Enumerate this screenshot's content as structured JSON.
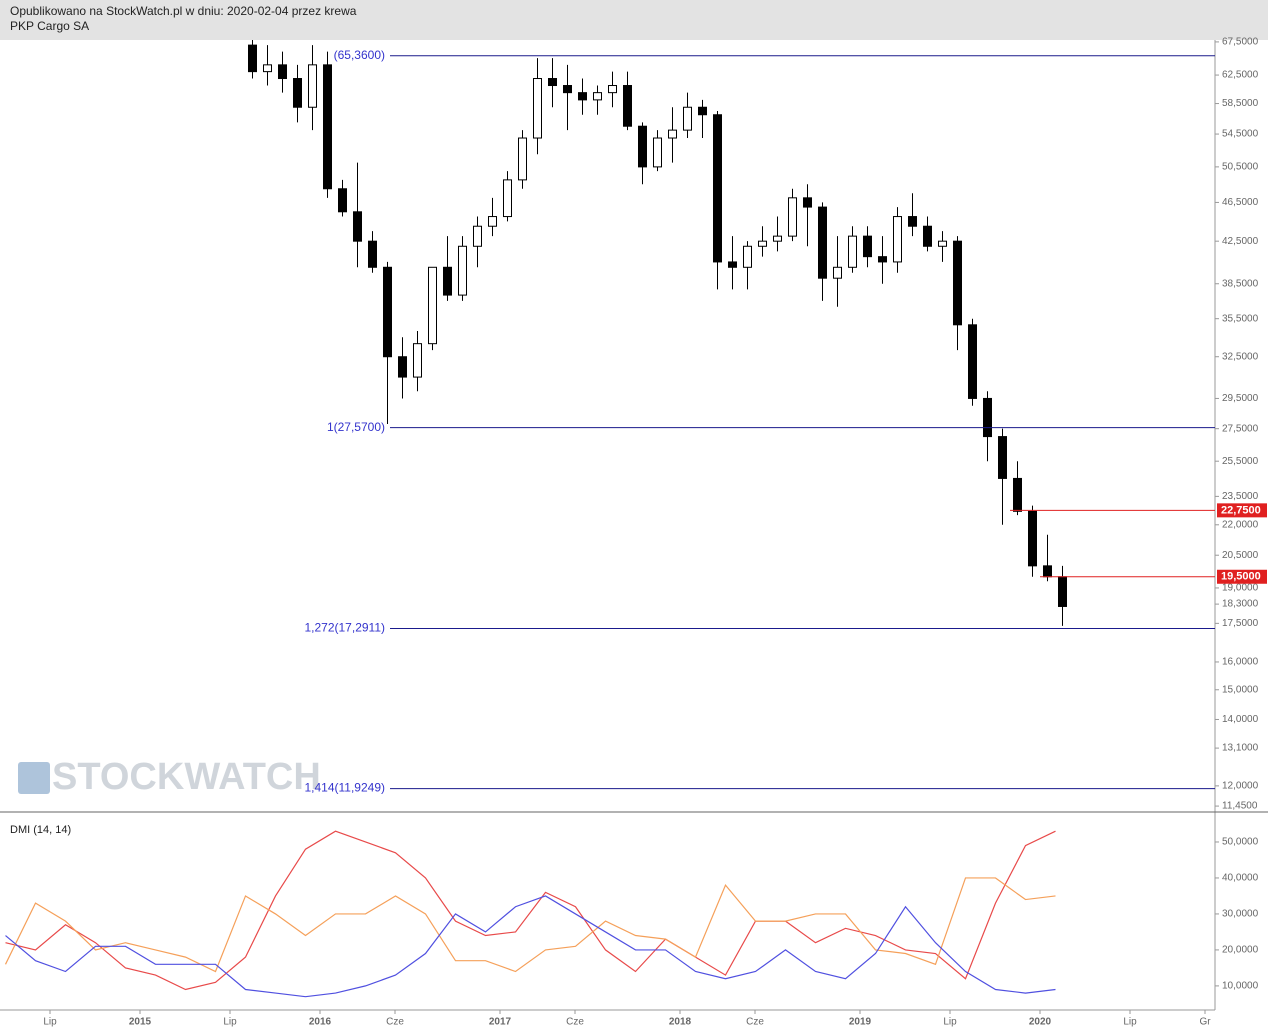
{
  "header": {
    "line1": "Opublikowano na StockWatch.pl w dniu: 2020-02-04 przez krewa",
    "line2": "PKP Cargo SA"
  },
  "watermark": "STOCKWATCH",
  "chart_data": [
    {
      "type": "candlestick",
      "log_scale": true,
      "xlim": [
        "2014-04",
        "2020-12"
      ],
      "ylim": [
        11.32,
        67.8
      ],
      "x": [
        "2015-08",
        "2015-09",
        "2015-10",
        "2015-11",
        "2015-12",
        "2016-01",
        "2016-02",
        "2016-03",
        "2016-04",
        "2016-05",
        "2016-06",
        "2016-07",
        "2016-08",
        "2016-09",
        "2016-10",
        "2016-11",
        "2016-12",
        "2017-01",
        "2017-02",
        "2017-03",
        "2017-04",
        "2017-05",
        "2017-06",
        "2017-07",
        "2017-08",
        "2017-09",
        "2017-10",
        "2017-11",
        "2017-12",
        "2018-01",
        "2018-02",
        "2018-03",
        "2018-04",
        "2018-05",
        "2018-06",
        "2018-07",
        "2018-08",
        "2018-09",
        "2018-10",
        "2018-11",
        "2018-12",
        "2019-01",
        "2019-02",
        "2019-03",
        "2019-04",
        "2019-05",
        "2019-06",
        "2019-07",
        "2019-08",
        "2019-09",
        "2019-10",
        "2019-11",
        "2019-12",
        "2020-01",
        "2020-02"
      ],
      "open": [
        67,
        63,
        64,
        62,
        58,
        64,
        48,
        45.5,
        42.5,
        40,
        32.5,
        31,
        33.5,
        40,
        37.5,
        42,
        44,
        45,
        49,
        54,
        62,
        61,
        60,
        59,
        60,
        61,
        55.5,
        50.5,
        54,
        55,
        58,
        57,
        40.5,
        40,
        42,
        42.5,
        43,
        47,
        46,
        39,
        40,
        43,
        41,
        40.5,
        45,
        44,
        42,
        42.5,
        35,
        29.5,
        27,
        24.5,
        22.7,
        20,
        19.5
      ],
      "high": [
        67.8,
        67,
        66,
        64,
        67,
        66,
        49,
        51,
        43.5,
        40.5,
        34,
        34.5,
        40,
        43,
        43,
        45,
        47,
        50,
        55,
        65,
        65,
        64,
        62,
        61,
        63,
        63,
        56,
        55,
        58,
        60,
        59,
        57.5,
        43,
        42.5,
        44,
        45,
        48,
        48.5,
        46.5,
        43,
        44,
        44,
        43,
        46,
        47.5,
        45,
        43.5,
        43,
        35.5,
        30,
        27.5,
        25.5,
        23,
        21.5,
        20
      ],
      "low": [
        62,
        61,
        60,
        56,
        55,
        47,
        45,
        40,
        39.5,
        27.8,
        29.5,
        30,
        33,
        37,
        37,
        40,
        43,
        44.5,
        48,
        52,
        58,
        55,
        57,
        57,
        58,
        55,
        48.5,
        50,
        51,
        54,
        54,
        38,
        38,
        38,
        41,
        41.5,
        42.5,
        42,
        37,
        36.5,
        39.5,
        40,
        38.5,
        39.5,
        43,
        41.5,
        40.5,
        33,
        29,
        25.5,
        22,
        22.5,
        19.5,
        19.3,
        17.4
      ],
      "close": [
        63,
        64,
        62,
        58,
        64,
        48,
        45.5,
        42.5,
        40,
        32.5,
        31,
        33.5,
        40,
        37.5,
        42,
        44,
        45,
        49,
        54,
        62,
        61,
        60,
        59,
        60,
        61,
        55.5,
        50.5,
        54,
        55,
        58,
        57,
        40.5,
        40,
        42,
        42.5,
        43,
        47,
        46,
        39,
        40,
        43,
        41,
        40.5,
        45,
        44,
        42,
        42.5,
        35,
        29.5,
        27,
        24.5,
        22.7,
        20,
        19.5,
        18.2
      ],
      "yticks": [
        {
          "value": 67.5,
          "label": "67,5000"
        },
        {
          "value": 62.5,
          "label": "62,5000"
        },
        {
          "value": 58.5,
          "label": "58,5000"
        },
        {
          "value": 54.5,
          "label": "54,5000"
        },
        {
          "value": 50.5,
          "label": "50,5000"
        },
        {
          "value": 46.5,
          "label": "46,5000"
        },
        {
          "value": 42.5,
          "label": "42,5000"
        },
        {
          "value": 38.5,
          "label": "38,5000"
        },
        {
          "value": 35.5,
          "label": "35,5000"
        },
        {
          "value": 32.5,
          "label": "32,5000"
        },
        {
          "value": 29.5,
          "label": "29,5000"
        },
        {
          "value": 27.5,
          "label": "27,5000"
        },
        {
          "value": 25.5,
          "label": "25,5000"
        },
        {
          "value": 23.5,
          "label": "23,5000"
        },
        {
          "value": 22,
          "label": "22,0000"
        },
        {
          "value": 20.5,
          "label": "20,5000"
        },
        {
          "value": 19,
          "label": "19,0000"
        },
        {
          "value": 18.3,
          "label": "18,3000"
        },
        {
          "value": 17.5,
          "label": "17,5000"
        },
        {
          "value": 16,
          "label": "16,0000"
        },
        {
          "value": 15,
          "label": "15,0000"
        },
        {
          "value": 14,
          "label": "14,0000"
        },
        {
          "value": 13.1,
          "label": "13,1000"
        },
        {
          "value": 12,
          "label": "12,0000"
        },
        {
          "value": 11.45,
          "label": "11,4500"
        }
      ],
      "fib_levels": [
        {
          "value": 65.36,
          "label": "(65,3600)"
        },
        {
          "value": 27.57,
          "label": "1(27,5700)"
        },
        {
          "value": 17.2911,
          "label": "1,272(17,2911)"
        },
        {
          "value": 11.9249,
          "label": "1,414(11,9249)"
        }
      ],
      "fib_color": "#1a1a8c",
      "price_lines": [
        {
          "value": 22.75,
          "label": "22,7500",
          "from": "2019-11"
        },
        {
          "value": 19.5,
          "label": "19,5000",
          "from": "2020-01"
        }
      ],
      "price_line_color": "#e02020"
    },
    {
      "type": "line",
      "title": "DMI (14, 14)",
      "xlim": [
        "2014-04",
        "2020-12"
      ],
      "ylim": [
        3.3,
        57.5
      ],
      "x": [
        "2014-04",
        "2014-06",
        "2014-08",
        "2014-10",
        "2014-12",
        "2015-02",
        "2015-04",
        "2015-06",
        "2015-08",
        "2015-10",
        "2015-12",
        "2016-02",
        "2016-04",
        "2016-06",
        "2016-08",
        "2016-10",
        "2016-12",
        "2017-02",
        "2017-04",
        "2017-06",
        "2017-08",
        "2017-10",
        "2017-12",
        "2018-02",
        "2018-04",
        "2018-06",
        "2018-08",
        "2018-10",
        "2018-12",
        "2019-02",
        "2019-04",
        "2019-06",
        "2019-08",
        "2019-10",
        "2019-12",
        "2020-02"
      ],
      "series": [
        {
          "color": "#e84a4a",
          "values": [
            22,
            20,
            27,
            22,
            15,
            13,
            9,
            11,
            18,
            35,
            48,
            53,
            50,
            47,
            40,
            28,
            24,
            25,
            36,
            32,
            20,
            14,
            23,
            18,
            13,
            28,
            28,
            22,
            26,
            24,
            20,
            19,
            12,
            33,
            49,
            53
          ]
        },
        {
          "color": "#f5a05a",
          "values": [
            16,
            33,
            28,
            20,
            22,
            20,
            18,
            14,
            35,
            30,
            24,
            30,
            30,
            35,
            30,
            17,
            17,
            14,
            20,
            21,
            28,
            24,
            23,
            18,
            38,
            28,
            28,
            30,
            30,
            20,
            19,
            16,
            40,
            40,
            34,
            35
          ]
        },
        {
          "color": "#5050e0",
          "values": [
            24,
            17,
            14,
            21,
            21,
            16,
            16,
            16,
            9,
            8,
            7,
            8,
            10,
            13,
            19,
            30,
            25,
            32,
            35,
            30,
            25,
            20,
            20,
            14,
            12,
            14,
            20,
            14,
            12,
            19,
            32,
            22,
            14,
            9,
            8,
            9
          ]
        }
      ],
      "yticks": [
        {
          "value": 50,
          "label": "50,0000"
        },
        {
          "value": 40,
          "label": "40,0000"
        },
        {
          "value": 30,
          "label": "30,0000"
        },
        {
          "value": 20,
          "label": "20,0000"
        },
        {
          "value": 10,
          "label": "10,0000"
        }
      ],
      "xticks": [
        {
          "value": "2014-07",
          "label": "Lip"
        },
        {
          "value": "2015-01",
          "label": "2015"
        },
        {
          "value": "2015-07",
          "label": "Lip"
        },
        {
          "value": "2016-01",
          "label": "2016"
        },
        {
          "value": "2016-06",
          "label": "Cze"
        },
        {
          "value": "2017-01",
          "label": "2017"
        },
        {
          "value": "2017-06",
          "label": "Cze"
        },
        {
          "value": "2018-01",
          "label": "2018"
        },
        {
          "value": "2018-06",
          "label": "Cze"
        },
        {
          "value": "2019-01",
          "label": "2019"
        },
        {
          "value": "2019-07",
          "label": "Lip"
        },
        {
          "value": "2020-01",
          "label": "2020"
        },
        {
          "value": "2020-07",
          "label": "Lip"
        },
        {
          "value": "2020-12",
          "label": "Gr"
        }
      ]
    }
  ]
}
